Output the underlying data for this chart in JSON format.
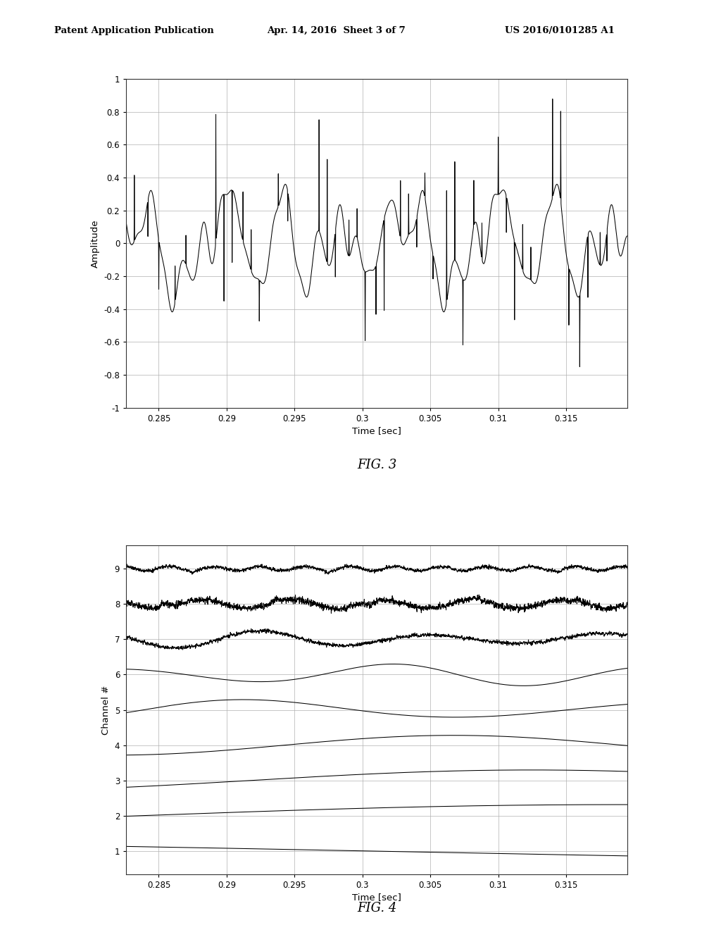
{
  "header_left": "Patent Application Publication",
  "header_center": "Apr. 14, 2016  Sheet 3 of 7",
  "header_right": "US 2016/0101285 A1",
  "fig3_label": "FIG. 3",
  "fig4_label": "FIG. 4",
  "xlabel": "Time [sec]",
  "fig3_ylabel": "Amplitude",
  "fig4_ylabel": "Channel #",
  "fig3_ylim": [
    -1,
    1
  ],
  "xmin": 0.28,
  "xmax": 0.32,
  "xticks": [
    0.285,
    0.29,
    0.295,
    0.3,
    0.305,
    0.31,
    0.315
  ],
  "fig3_yticks": [
    -1,
    -0.8,
    -0.6,
    -0.4,
    -0.2,
    0,
    0.2,
    0.4,
    0.6,
    0.8,
    1
  ],
  "fig4_yticks": [
    1,
    2,
    3,
    4,
    5,
    6,
    7,
    8,
    9
  ],
  "background_color": "#ffffff",
  "line_color": "#000000",
  "grid_color": "#b0b0b0",
  "num_channels": 9,
  "channel_freqs": [
    4,
    7,
    12,
    20,
    32,
    50,
    80,
    150,
    300
  ],
  "channel_amps": [
    0.3,
    0.32,
    0.3,
    0.28,
    0.26,
    0.24,
    0.18,
    0.12,
    0.06
  ]
}
